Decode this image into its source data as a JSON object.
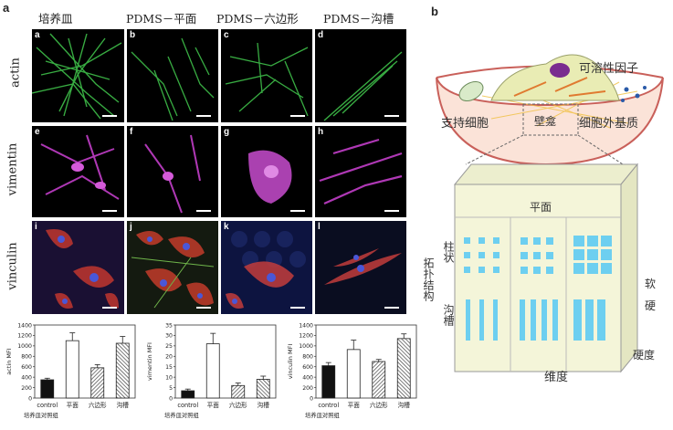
{
  "panel_a": {
    "letter": "a",
    "columns": [
      "培养皿",
      "PDMS－平面",
      "PDMS－六边形",
      "PDMS－沟槽"
    ],
    "rows": [
      "actin",
      "vimentin",
      "vinculin"
    ],
    "tiles": [
      "a",
      "b",
      "c",
      "d",
      "e",
      "f",
      "g",
      "h",
      "i",
      "j",
      "k",
      "l"
    ]
  },
  "chart_data": [
    {
      "type": "bar",
      "categories": [
        "control",
        "平面",
        "六边形",
        "沟槽"
      ],
      "values": [
        350,
        1100,
        580,
        1050
      ],
      "errors": [
        30,
        150,
        60,
        130
      ],
      "ylabel": "actin MFI",
      "ylim": [
        0,
        1400
      ],
      "yticks": [
        0,
        200,
        400,
        600,
        800,
        1000,
        1200,
        1400
      ],
      "xnote": "培养皿对照组"
    },
    {
      "type": "bar",
      "categories": [
        "control",
        "平面",
        "六边形",
        "沟槽"
      ],
      "values": [
        3.5,
        26,
        6,
        9
      ],
      "errors": [
        0.8,
        5,
        1.2,
        1.5
      ],
      "ylabel": "vimentin MFI",
      "ylim": [
        0,
        35
      ],
      "yticks": [
        0,
        5,
        10,
        15,
        20,
        25,
        30,
        35
      ],
      "xnote": "培养皿对照组"
    },
    {
      "type": "bar",
      "categories": [
        "control",
        "平面",
        "六边形",
        "沟槽"
      ],
      "values": [
        620,
        930,
        700,
        1140
      ],
      "errors": [
        60,
        180,
        40,
        90
      ],
      "ylabel": "vinculin MFI",
      "ylim": [
        0,
        1400
      ],
      "yticks": [
        0,
        200,
        400,
        600,
        800,
        1000,
        1200,
        1400
      ],
      "xnote": "培养皿对照组"
    }
  ],
  "panel_b": {
    "letter": "b",
    "soluble": "可溶性因子",
    "support": "支持细胞",
    "niche": "壁龛",
    "ecm": "细胞外基质",
    "front": "平面",
    "pillar": "柱状",
    "topology": "拓扑结构",
    "groove": "沟槽",
    "dimension": "维度",
    "soft": "软",
    "hard": "硬",
    "stiffness": "硬度",
    "colors": {
      "cube_face": "#f4f5d9",
      "cube_side": "#e4e6c2",
      "cube_top": "#eceece",
      "pattern": "#6dcff0",
      "cell": "#e9ecb4",
      "nucleus": "#7a2c8f",
      "dish_fill": "#fbe3d8",
      "dish_stroke": "#c9605a"
    }
  }
}
